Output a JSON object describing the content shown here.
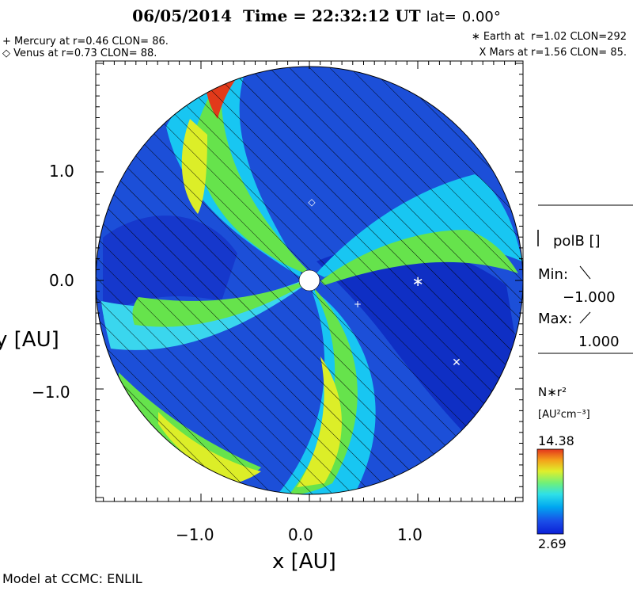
{
  "header": {
    "date": "06/05/2014",
    "time_label": "Time =",
    "time": "22:32:12",
    "time_unit": "UT",
    "lat_label": "lat=",
    "lat_value": "0.00°"
  },
  "planets": {
    "mercury": "+ Mercury at r=0.46 CLON= 86.",
    "venus": "◇ Venus at r=0.73 CLON= 88.",
    "earth": "∗ Earth at  r=1.02 CLON=292",
    "mars": "X Mars at r=1.56 CLON= 85."
  },
  "axes": {
    "x_ticks": [
      "−1.0",
      "0.0",
      "1.0"
    ],
    "y_ticks": [
      "1.0",
      "0.0",
      "−1.0"
    ],
    "x_label": "x [AU]",
    "y_label": "y [AU]"
  },
  "polarity_legend": {
    "title": "polB []",
    "min_label": "Min:",
    "min_value": "−1.000",
    "max_label": "Max:",
    "max_value": "1.000"
  },
  "colorbar": {
    "quantity": "N∗r²",
    "units": "[AU²cm⁻³]",
    "max": "14.38",
    "min": "2.69",
    "colors": [
      "#0b1fd6",
      "#1a4de8",
      "#00a8f0",
      "#2fe0e8",
      "#6ff07a",
      "#dfef2b",
      "#f4a21a",
      "#e4351c"
    ]
  },
  "footer": {
    "credit": "Model at CCMC: ENLIL"
  },
  "colors": {
    "background_blue": "#1c4fd8",
    "spiral_cyan": "#18c6f2",
    "spiral_green": "#66e34c",
    "spiral_yellow": "#dcee28",
    "peak_red": "#e23a1a"
  }
}
